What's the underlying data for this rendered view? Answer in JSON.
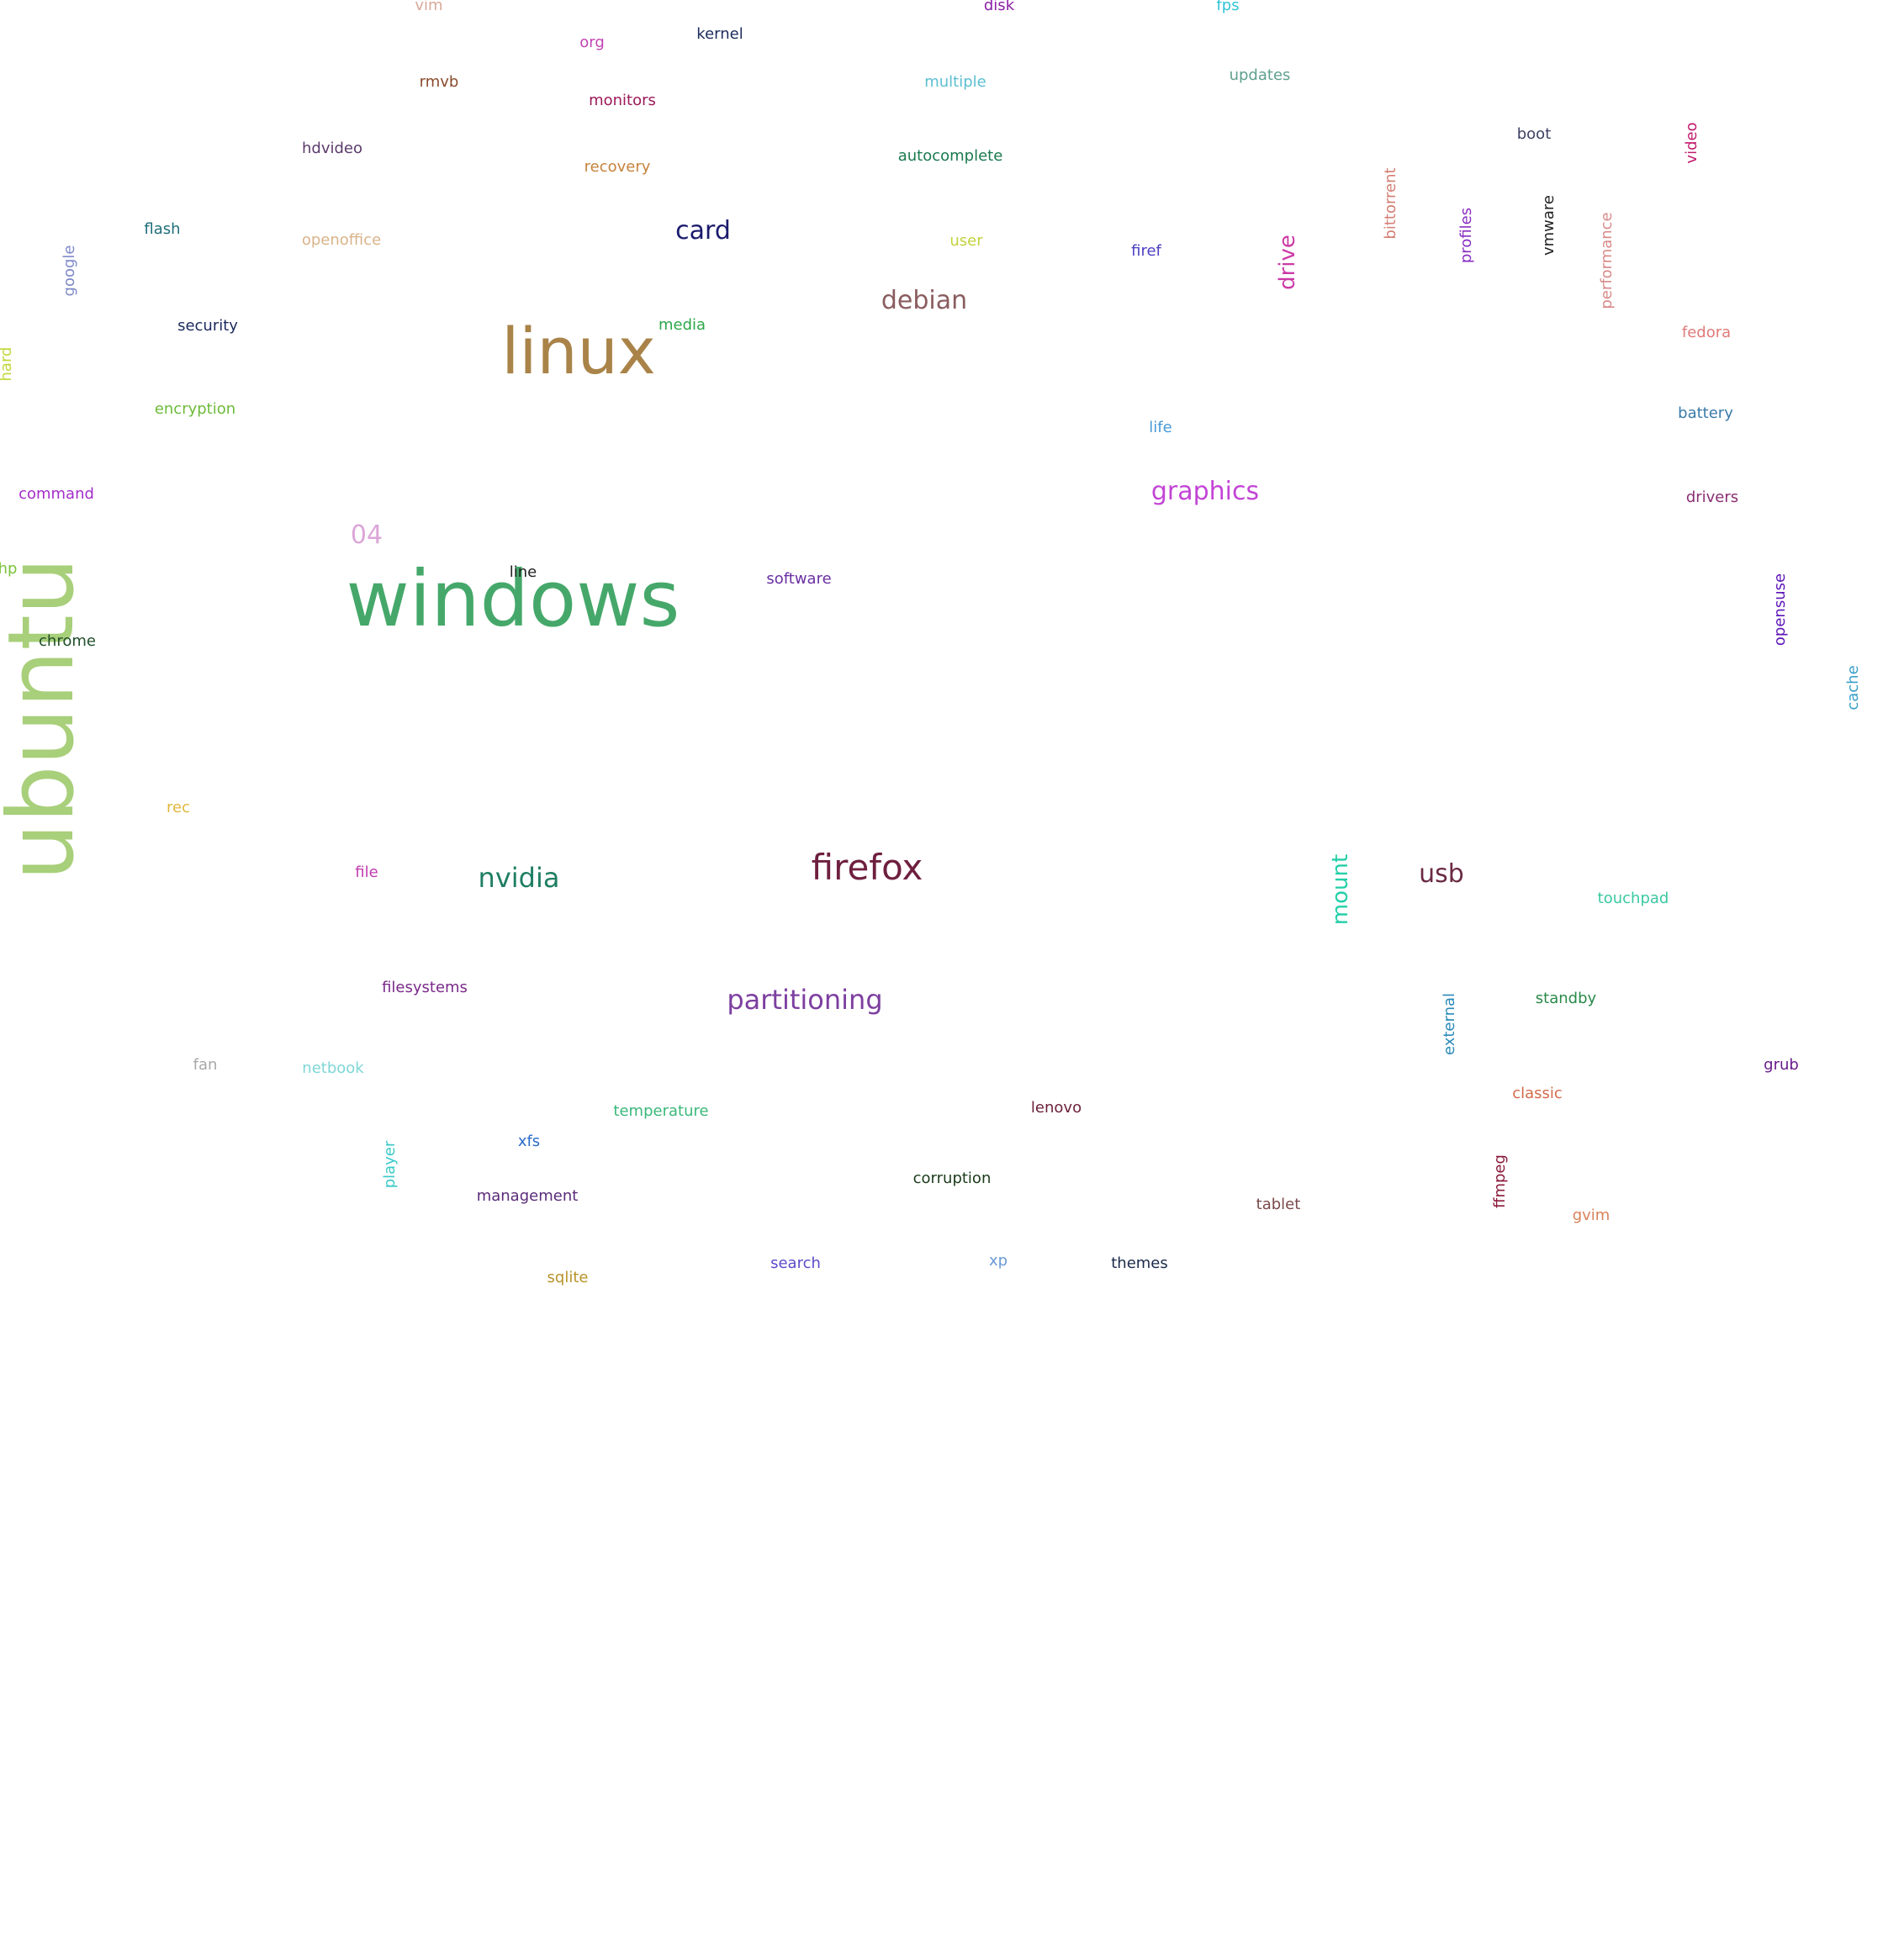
{
  "cloud": {
    "words": [
      {
        "id": "ubuntu",
        "text": "ubuntu",
        "color": "#a8cf7a"
      },
      {
        "id": "windows",
        "text": "windows",
        "color": "#45a86a"
      },
      {
        "id": "linux",
        "text": "linux",
        "color": "#a98348"
      },
      {
        "id": "firefox",
        "text": "firefox",
        "color": "#6e1f3f"
      },
      {
        "id": "partitioning",
        "text": "partitioning",
        "color": "#7d3fa0"
      },
      {
        "id": "nvidia",
        "text": "nvidia",
        "color": "#1f7e63"
      },
      {
        "id": "graphics",
        "text": "graphics",
        "color": "#c344d6"
      },
      {
        "id": "debian",
        "text": "debian",
        "color": "#8a5d5f"
      },
      {
        "id": "card",
        "text": "card",
        "color": "#1c1b6e"
      },
      {
        "id": "usb",
        "text": "usb",
        "color": "#6a2a44"
      },
      {
        "id": "mount",
        "text": "mount",
        "color": "#22cfa8"
      },
      {
        "id": "drive",
        "text": "drive",
        "color": "#cc3aa6"
      },
      {
        "id": "04",
        "text": "04",
        "color": "#dca6d8"
      },
      {
        "id": "vim",
        "text": "vim",
        "color": "#d7a99a"
      },
      {
        "id": "disk",
        "text": "disk",
        "color": "#8c1fa6"
      },
      {
        "id": "fps",
        "text": "fps",
        "color": "#2fc3d6"
      },
      {
        "id": "org",
        "text": "org",
        "color": "#c243b3"
      },
      {
        "id": "kernel",
        "text": "kernel",
        "color": "#1c2b5c"
      },
      {
        "id": "rmvb",
        "text": "rmvb",
        "color": "#8a4a2c"
      },
      {
        "id": "monitors",
        "text": "monitors",
        "color": "#9c1a59"
      },
      {
        "id": "multiple",
        "text": "multiple",
        "color": "#5bbfd0"
      },
      {
        "id": "updates",
        "text": "updates",
        "color": "#5fa08d"
      },
      {
        "id": "boot",
        "text": "boot",
        "color": "#3d4164"
      },
      {
        "id": "video",
        "text": "video",
        "color": "#c21b6e"
      },
      {
        "id": "hdvideo",
        "text": "hdvideo",
        "color": "#5b3b6a"
      },
      {
        "id": "recovery",
        "text": "recovery",
        "color": "#c6823b"
      },
      {
        "id": "autocomplete",
        "text": "autocomplete",
        "color": "#1a7a4e"
      },
      {
        "id": "bittorrent",
        "text": "bittorrent",
        "color": "#d47f75"
      },
      {
        "id": "profiles",
        "text": "profiles",
        "color": "#8a2dc2"
      },
      {
        "id": "vmware",
        "text": "vmware",
        "color": "#222222"
      },
      {
        "id": "performance",
        "text": "performance",
        "color": "#d98a8a"
      },
      {
        "id": "flash",
        "text": "flash",
        "color": "#1f6e7a"
      },
      {
        "id": "openoffice",
        "text": "openoffice",
        "color": "#d9b38a"
      },
      {
        "id": "user",
        "text": "user",
        "color": "#c2d23b"
      },
      {
        "id": "firef",
        "text": "firef",
        "color": "#4a3fc2"
      },
      {
        "id": "google",
        "text": "google",
        "color": "#7f8ac9"
      },
      {
        "id": "security",
        "text": "security",
        "color": "#1b2a5e"
      },
      {
        "id": "media",
        "text": "media",
        "color": "#2ca84a"
      },
      {
        "id": "fedora",
        "text": "fedora",
        "color": "#e07a7a"
      },
      {
        "id": "hard",
        "text": "hard",
        "color": "#c2d63a"
      },
      {
        "id": "encryption",
        "text": "encryption",
        "color": "#6dbb3a"
      },
      {
        "id": "life",
        "text": "life",
        "color": "#4a9ad6"
      },
      {
        "id": "battery",
        "text": "battery",
        "color": "#3a7aa8"
      },
      {
        "id": "command",
        "text": "command",
        "color": "#a32dc9"
      },
      {
        "id": "drivers",
        "text": "drivers",
        "color": "#8a2e73"
      },
      {
        "id": "hp",
        "text": "hp",
        "color": "#7bc33b"
      },
      {
        "id": "line",
        "text": "line",
        "color": "#222222"
      },
      {
        "id": "software",
        "text": "software",
        "color": "#6a2fa3"
      },
      {
        "id": "chrome",
        "text": "chrome",
        "color": "#1f4f2a"
      },
      {
        "id": "opensuse",
        "text": "opensuse",
        "color": "#5c14b8"
      },
      {
        "id": "cache",
        "text": "cache",
        "color": "#3aa0c9"
      },
      {
        "id": "rec",
        "text": "rec",
        "color": "#e0b83a"
      },
      {
        "id": "file",
        "text": "file",
        "color": "#c23bb0"
      },
      {
        "id": "touchpad",
        "text": "touchpad",
        "color": "#3ac9a0"
      },
      {
        "id": "filesystems",
        "text": "filesystems",
        "color": "#7a2a8a"
      },
      {
        "id": "external",
        "text": "external",
        "color": "#2a8ab8"
      },
      {
        "id": "standby",
        "text": "standby",
        "color": "#2a8a4a"
      },
      {
        "id": "fan",
        "text": "fan",
        "color": "#a8a8a8"
      },
      {
        "id": "netbook",
        "text": "netbook",
        "color": "#7fd6d6"
      },
      {
        "id": "grub",
        "text": "grub",
        "color": "#6a1a8a"
      },
      {
        "id": "classic",
        "text": "classic",
        "color": "#d46a4a"
      },
      {
        "id": "temperature",
        "text": "temperature",
        "color": "#3ab87a"
      },
      {
        "id": "lenovo",
        "text": "lenovo",
        "color": "#6a1f3a"
      },
      {
        "id": "xfs",
        "text": "xfs",
        "color": "#2a6ac9"
      },
      {
        "id": "player",
        "text": "player",
        "color": "#3ac9c9"
      },
      {
        "id": "corruption",
        "text": "corruption",
        "color": "#1a3a1a"
      },
      {
        "id": "ffmpeg",
        "text": "ffmpeg",
        "color": "#8a1a3a"
      },
      {
        "id": "management",
        "text": "management",
        "color": "#5a2a7a"
      },
      {
        "id": "tablet",
        "text": "tablet",
        "color": "#7a4a4a"
      },
      {
        "id": "gvim",
        "text": "gvim",
        "color": "#d9825a"
      },
      {
        "id": "search",
        "text": "search",
        "color": "#5a4ac9"
      },
      {
        "id": "xp",
        "text": "xp",
        "color": "#6a9ad6"
      },
      {
        "id": "themes",
        "text": "themes",
        "color": "#1a2a4a"
      },
      {
        "id": "sqlite",
        "text": "sqlite",
        "color": "#b8932a"
      }
    ]
  }
}
